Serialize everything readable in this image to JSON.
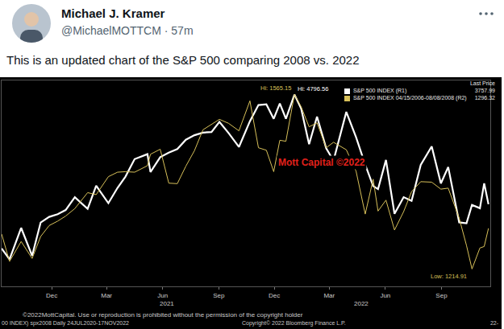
{
  "tweet": {
    "name": "Michael J. Kramer",
    "handle_line": "@MichaelMOTTCM · 57m",
    "text": "This is an updated chart of the S&P 500 comparing 2008 vs. 2022"
  },
  "chart_data": {
    "type": "line",
    "x": [
      "2020-09-10",
      "2020-09-23",
      "2020-10-12",
      "2020-10-30",
      "2020-11-13",
      "2020-11-27",
      "2020-12-11",
      "2020-12-24",
      "2021-01-08",
      "2021-01-29",
      "2021-02-12",
      "2021-03-04",
      "2021-03-19",
      "2021-04-01",
      "2021-04-16",
      "2021-05-07",
      "2021-05-12",
      "2021-05-28",
      "2021-06-11",
      "2021-06-25",
      "2021-07-09",
      "2021-07-23",
      "2021-08-06",
      "2021-08-20",
      "2021-09-02",
      "2021-09-17",
      "2021-10-04",
      "2021-10-22",
      "2021-11-05",
      "2021-11-18",
      "2021-11-30",
      "2021-12-10",
      "2021-12-20",
      "2022-01-03",
      "2022-01-14",
      "2022-01-27",
      "2022-02-09",
      "2022-02-24",
      "2022-03-08",
      "2022-03-29",
      "2022-04-14",
      "2022-04-29",
      "2022-05-12",
      "2022-05-20",
      "2022-06-02",
      "2022-06-16",
      "2022-07-01",
      "2022-07-14",
      "2022-07-29",
      "2022-08-16",
      "2022-08-31",
      "2022-09-12",
      "2022-09-30",
      "2022-10-12",
      "2022-10-21",
      "2022-11-03",
      "2022-11-10",
      "2022-11-17"
    ],
    "series": [
      {
        "name": "S&P 500 INDEX (R1)",
        "color": "#ffffff",
        "axis": "y",
        "values": [
          3339,
          3237,
          3534,
          3270,
          3585,
          3638,
          3663,
          3703,
          3824,
          3714,
          3934,
          3768,
          3913,
          4019,
          4185,
          4232,
          4063,
          4204,
          4247,
          4280,
          4369,
          4411,
          4436,
          4441,
          4537,
          4432,
          4300,
          4544,
          4697,
          4704,
          4567,
          4712,
          4568,
          4796.56,
          4663,
          4326,
          4587,
          4288,
          4170,
          4632,
          4392,
          4132,
          3930,
          3901,
          4177,
          3667,
          3825,
          3790,
          4130,
          4305,
          3955,
          4110,
          3586,
          3577,
          3752,
          3720,
          3956,
          3757.99
        ]
      },
      {
        "name": "S&P 500 INDEX 04/15/2006-08/08/2008 (R2)",
        "color": "#d8c15a",
        "axis": "y2",
        "values": [
          1285,
          1230,
          1270,
          1236,
          1280,
          1302,
          1311,
          1321,
          1336,
          1368,
          1364,
          1400,
          1409,
          1410,
          1409,
          1422,
          1445,
          1455,
          1387,
          1386,
          1421,
          1452,
          1494,
          1505,
          1515,
          1507,
          1492,
          1552,
          1458,
          1453,
          1410,
          1473,
          1471,
          1565.15,
          1540,
          1500,
          1508,
          1458,
          1469,
          1454,
          1411,
          1325,
          1395,
          1331,
          1353,
          1293,
          1330,
          1370,
          1390,
          1389,
          1375,
          1377,
          1317,
          1262,
          1214.91,
          1257,
          1260,
          1296.32
        ]
      }
    ],
    "xlim": [
      "2020-09-10",
      "2022-11-20"
    ],
    "xticks": [
      {
        "value": "2020-12-01",
        "label": "Dec"
      },
      {
        "value": "2021-03-01",
        "label": "Mar"
      },
      {
        "value": "2021-06-01",
        "label": "Jun"
      },
      {
        "value": "2021-09-01",
        "label": "Sep"
      },
      {
        "value": "2021-12-01",
        "label": "Dec"
      },
      {
        "value": "2022-03-01",
        "label": "Mar"
      },
      {
        "value": "2022-06-01",
        "label": "Jun"
      },
      {
        "value": "2022-09-01",
        "label": "Sep"
      }
    ],
    "ylim": [
      2980,
      4930
    ],
    "y2lim": [
      1180,
      1593
    ],
    "tick_labels": "x",
    "grid": false,
    "legend": "top right",
    "legend_title": "Last Price",
    "annotations": [
      {
        "text": "Hi: 1565.15",
        "x": "2022-01-03",
        "y": 1565.15,
        "axis": "y2",
        "color": "#d8c15a"
      },
      {
        "text": "Hi: 4796.56",
        "x": "2022-01-03",
        "y": 4796.56,
        "axis": "y",
        "color": "#ffffff"
      },
      {
        "text": "Low: 1214.91",
        "x": "2022-10-21",
        "y": 1214.91,
        "axis": "y2",
        "color": "#d8c15a"
      },
      {
        "text": "Mott Capital ©2022",
        "x": "2022-02-17",
        "y": 4150,
        "axis": "y",
        "color": "#e0201b"
      },
      {
        "text": "2021",
        "x": "2021-06-08",
        "color": "#cccccc"
      },
      {
        "text": "2022",
        "x": "2022-04-22",
        "color": "#cccccc"
      }
    ]
  },
  "chart_footer": {
    "notice": "©2022MottCapital. Use or reproduction is prohibited without the permission of the copyright holder",
    "source": "00 INDEX) spx2008 Daily 24JUL2020-17NOV2022",
    "copyright": "Copyright© 2022 Bloomberg Finance L.P.",
    "end": "22-"
  }
}
